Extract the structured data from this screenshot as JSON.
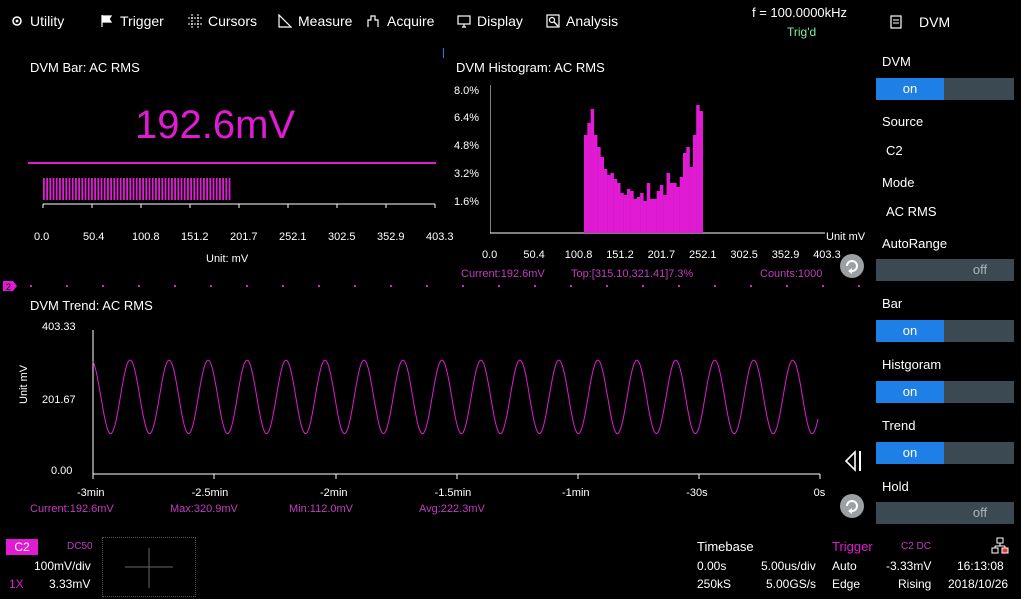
{
  "menu": {
    "utility": "Utility",
    "trigger": "Trigger",
    "cursors": "Cursors",
    "measure": "Measure",
    "acquire": "Acquire",
    "display": "Display",
    "analysis": "Analysis"
  },
  "status": {
    "frequency": "f = 100.0000kHz",
    "trig_state": "Trig'd"
  },
  "side_panel": {
    "title": "DVM",
    "dvm_label": "DVM",
    "dvm_state": "on",
    "source_label": "Source",
    "source_value": "C2",
    "mode_label": "Mode",
    "mode_value": "AC RMS",
    "autorange_label": "AutoRange",
    "autorange_state": "off",
    "bar_label": "Bar",
    "bar_state": "on",
    "histogram_label": "Histgoram",
    "histogram_state": "on",
    "trend_label": "Trend",
    "trend_state": "on",
    "hold_label": "Hold",
    "hold_state": "off"
  },
  "dvm_bar": {
    "title": "DVM Bar: AC RMS",
    "reading": "192.6mV",
    "axis_ticks": [
      "0.0",
      "50.4",
      "100.8",
      "151.2",
      "201.7",
      "252.1",
      "302.5",
      "352.9",
      "403.3"
    ],
    "unit": "Unit: mV",
    "fill_fraction": 0.4776
  },
  "histogram": {
    "title": "DVM Histogram: AC RMS",
    "y_ticks": [
      "8.0%",
      "6.4%",
      "4.8%",
      "3.2%",
      "1.6%"
    ],
    "x_ticks": [
      "0.0",
      "50.4",
      "100.8",
      "151.2",
      "201.7",
      "252.1",
      "302.5",
      "352.9",
      "403.3"
    ],
    "unit": "Unit mV",
    "current": "Current:192.6mV",
    "top": "Top:[315.10,321.41]7.3%",
    "counts": "Counts:1000"
  },
  "trend": {
    "title": "DVM Trend: AC RMS",
    "y_ticks": [
      "403.33",
      "201.67",
      "0.00"
    ],
    "y_label": "Unit mV",
    "x_ticks": [
      "-3min",
      "-2.5min",
      "-2min",
      "-1.5min",
      "-1min",
      "-30s",
      "0s"
    ],
    "current": "Current:192.6mV",
    "max": "Max:320.9mV",
    "min": "Min:112.0mV",
    "avg": "Avg:222.3mV"
  },
  "channel": {
    "name": "C2",
    "coupling": "DC50",
    "scale": "100mV/div",
    "probe": "1X",
    "offset": "3.33mV"
  },
  "timebase": {
    "label": "Timebase",
    "delay": "0.00s",
    "per_div": "5.00us/div",
    "points": "250kS",
    "sample_rate": "5.00GS/s"
  },
  "trigger": {
    "label": "Trigger",
    "mode": "Auto",
    "type": "Edge",
    "source": "C2 DC",
    "level": "-3.33mV",
    "slope": "Rising"
  },
  "clock": {
    "time": "16:13:08",
    "date": "2018/10/26"
  },
  "colors": {
    "magenta": "#e01bd3",
    "blue": "#1e7fe6",
    "green": "#7cf0a0",
    "toggle_bg": "#3b4a52"
  }
}
